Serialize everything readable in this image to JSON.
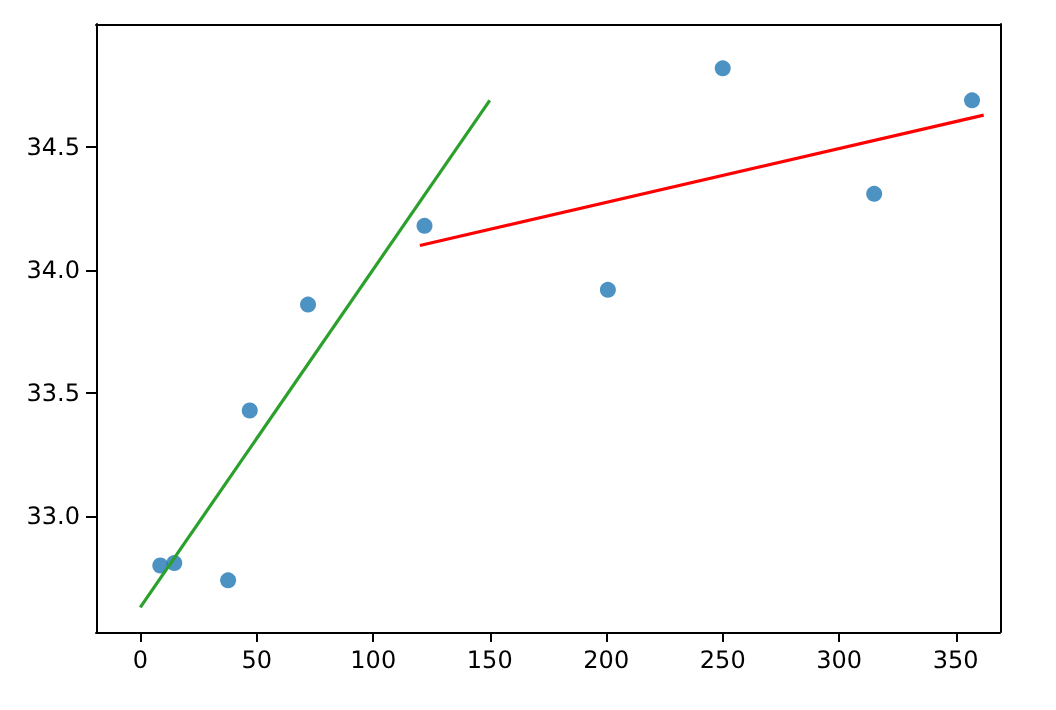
{
  "chart_data": {
    "type": "scatter",
    "xlim": [
      -19,
      369
    ],
    "ylim": [
      32.53,
      35.0
    ],
    "xticks": [
      0,
      50,
      100,
      150,
      200,
      250,
      300,
      350
    ],
    "yticks": [
      {
        "value": 33,
        "label": "33.0"
      },
      {
        "value": 33.5,
        "label": "33.5"
      },
      {
        "value": 34,
        "label": "34.0"
      },
      {
        "value": 34.5,
        "label": "34.5"
      }
    ],
    "grid": false,
    "series": [
      {
        "color": "#1f77b4",
        "marker": "circle",
        "x": [
          8.6,
          14.6,
          37.7,
          47,
          72,
          122,
          200.7,
          250,
          315,
          357
        ],
        "values": [
          32.8,
          32.81,
          32.74,
          33.43,
          33.86,
          34.18,
          33.92,
          34.82,
          34.31,
          34.69
        ]
      },
      {
        "type": "line",
        "marker": "none",
        "color": "#2ca02c",
        "x": [
          0,
          150
        ],
        "values": [
          32.63,
          34.69
        ]
      },
      {
        "type": "line",
        "marker": "none",
        "color": "#ff0000",
        "x": [
          120,
          362
        ],
        "values": [
          34.1,
          34.63
        ]
      }
    ]
  }
}
